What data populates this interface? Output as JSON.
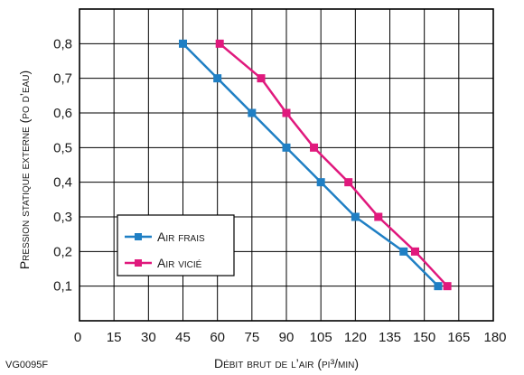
{
  "figure_code": "VG0095F",
  "chart_data": {
    "type": "line",
    "xlabel": "Débit brut de l’air (pi³/min)",
    "ylabel": "Pression statique externe (po d’eau)",
    "x_ticks": [
      "0",
      "15",
      "30",
      "45",
      "60",
      "75",
      "90",
      "105",
      "120",
      "135",
      "150",
      "165",
      "180"
    ],
    "y_ticks": [
      "0,1",
      "0,2",
      "0,3",
      "0,4",
      "0,5",
      "0,6",
      "0,7",
      "0,8"
    ],
    "xlim": [
      0,
      180
    ],
    "ylim": [
      0,
      0.9
    ],
    "grid": true,
    "legend_position": "lower-left",
    "series": [
      {
        "name": "Air frais",
        "color": "#1f7fc4",
        "points": [
          [
            45,
            0.8
          ],
          [
            60,
            0.7
          ],
          [
            75,
            0.6
          ],
          [
            90,
            0.5
          ],
          [
            105,
            0.4
          ],
          [
            120,
            0.3
          ],
          [
            141,
            0.2
          ],
          [
            156,
            0.1
          ]
        ]
      },
      {
        "name": "Air vicié",
        "color": "#e0197d",
        "points": [
          [
            61,
            0.8
          ],
          [
            79,
            0.7
          ],
          [
            90,
            0.6
          ],
          [
            102,
            0.5
          ],
          [
            117,
            0.4
          ],
          [
            130,
            0.3
          ],
          [
            146,
            0.2
          ],
          [
            160,
            0.1
          ]
        ]
      }
    ]
  }
}
